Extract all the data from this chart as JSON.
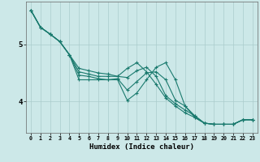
{
  "xlabel": "Humidex (Indice chaleur)",
  "background_color": "#cce8e8",
  "grid_color": "#aacccc",
  "line_color": "#1a7a6e",
  "xlim": [
    -0.5,
    23.5
  ],
  "ylim": [
    3.45,
    5.75
  ],
  "yticks": [
    4,
    5
  ],
  "xticks": [
    0,
    1,
    2,
    3,
    4,
    5,
    6,
    7,
    8,
    9,
    10,
    11,
    12,
    13,
    14,
    15,
    16,
    17,
    18,
    19,
    20,
    21,
    22,
    23
  ],
  "series": [
    [
      5.6,
      5.3,
      5.18,
      5.05,
      4.82,
      4.38,
      4.38,
      4.38,
      4.38,
      4.38,
      4.02,
      4.15,
      4.38,
      4.6,
      4.68,
      4.38,
      3.92,
      3.72,
      3.62,
      3.6,
      3.6,
      3.6,
      3.68,
      3.68
    ],
    [
      5.6,
      5.3,
      5.18,
      5.05,
      4.82,
      4.46,
      4.44,
      4.4,
      4.38,
      4.4,
      4.2,
      4.35,
      4.5,
      4.52,
      4.38,
      4.02,
      3.92,
      3.75,
      3.62,
      3.6,
      3.6,
      3.6,
      3.68,
      3.68
    ],
    [
      5.6,
      5.3,
      5.18,
      5.05,
      4.82,
      4.52,
      4.48,
      4.44,
      4.44,
      4.44,
      4.42,
      4.54,
      4.6,
      4.44,
      4.1,
      3.96,
      3.85,
      3.75,
      3.62,
      3.6,
      3.6,
      3.6,
      3.68,
      3.68
    ],
    [
      5.6,
      5.3,
      5.18,
      5.05,
      4.82,
      4.58,
      4.54,
      4.5,
      4.48,
      4.44,
      4.58,
      4.68,
      4.52,
      4.3,
      4.06,
      3.92,
      3.8,
      3.72,
      3.62,
      3.6,
      3.6,
      3.6,
      3.68,
      3.68
    ]
  ]
}
